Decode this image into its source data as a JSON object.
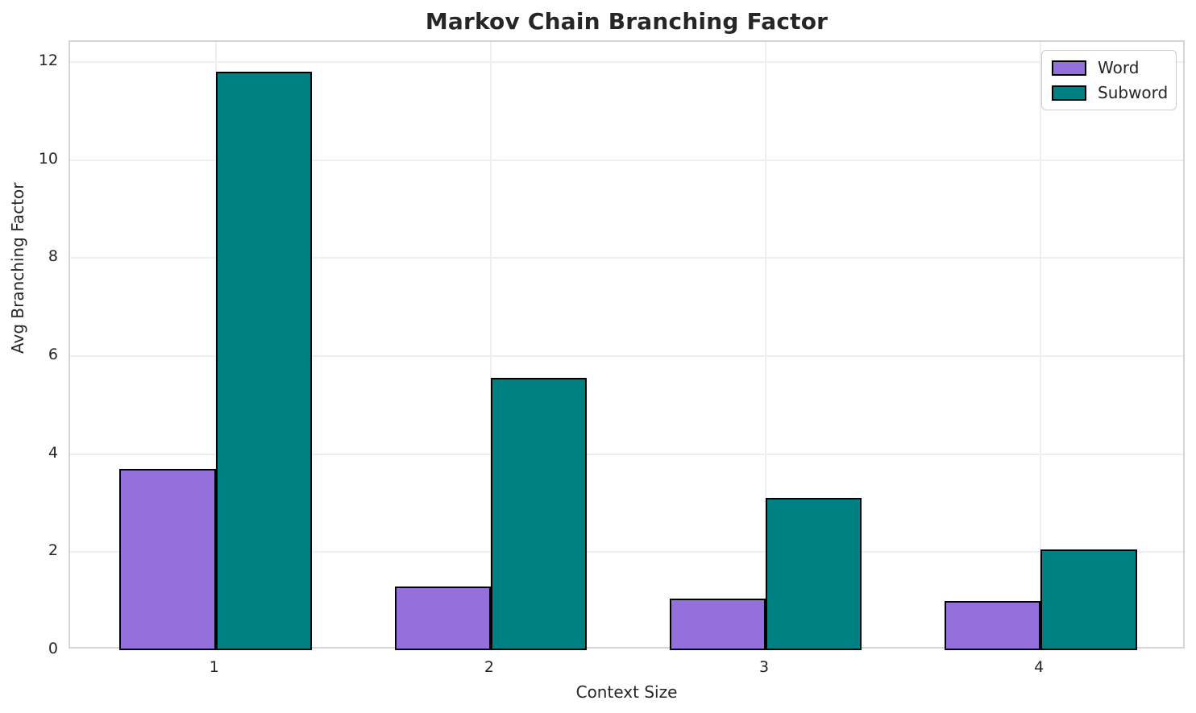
{
  "chart_data": {
    "type": "bar",
    "title": "Markov Chain Branching Factor",
    "xlabel": "Context Size",
    "ylabel": "Avg Branching Factor",
    "categories": [
      "1",
      "2",
      "3",
      "4"
    ],
    "series": [
      {
        "name": "Word",
        "color": "#9370DB",
        "values": [
          3.7,
          1.3,
          1.05,
          1.0
        ]
      },
      {
        "name": "Subword",
        "color": "#008080",
        "values": [
          11.8,
          5.55,
          3.1,
          2.05
        ]
      }
    ],
    "ylim": [
      0,
      12.41
    ],
    "yticks": [
      0,
      2,
      4,
      6,
      8,
      10,
      12
    ],
    "bar_width_units": 0.35,
    "xlim": [
      0.47,
      4.53
    ],
    "grid": true,
    "legend_position": "upper right",
    "bar_edge_color": "#000000",
    "grid_color": "#efefef",
    "spine_color": "#d5d5d5",
    "text_color": "#262626",
    "background_color": "#ffffff"
  }
}
